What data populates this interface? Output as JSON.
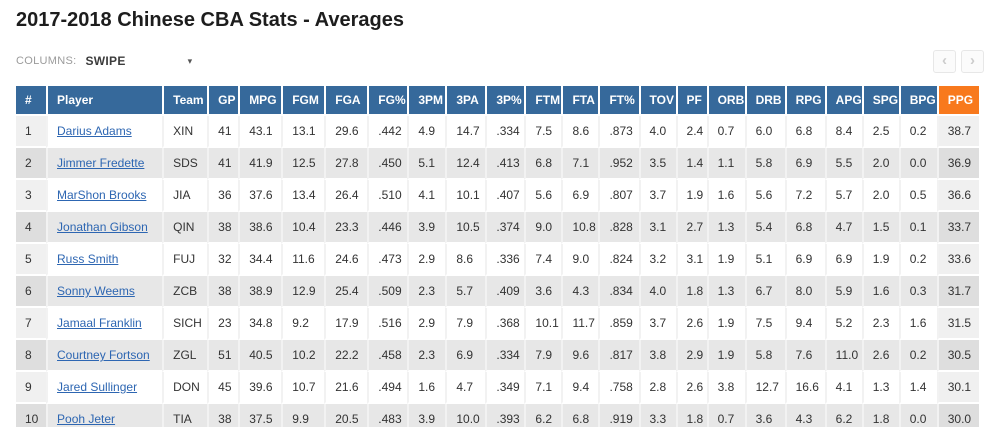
{
  "page": {
    "title": "2017-2018 Chinese CBA Stats - Averages"
  },
  "toolbar": {
    "columns_label": "COLUMNS:",
    "columns_value": "SWIPE",
    "icons": {
      "caret": "▾",
      "prev": "‹",
      "next": "›"
    }
  },
  "colors": {
    "header_bg": "#36699b",
    "sorted_header_bg": "#f8791d",
    "link_blue": "#2d66b2"
  },
  "table": {
    "sorted_column": "PPG",
    "columns": [
      "#",
      "Player",
      "Team",
      "GP",
      "MPG",
      "FGM",
      "FGA",
      "FG%",
      "3PM",
      "3PA",
      "3P%",
      "FTM",
      "FTA",
      "FT%",
      "TOV",
      "PF",
      "ORB",
      "DRB",
      "RPG",
      "APG",
      "SPG",
      "BPG",
      "PPG"
    ],
    "rows": [
      {
        "rank": "1",
        "player": "Darius Adams",
        "team": "XIN",
        "stats": [
          "41",
          "43.1",
          "13.1",
          "29.6",
          ".442",
          "4.9",
          "14.7",
          ".334",
          "7.5",
          "8.6",
          ".873",
          "4.0",
          "2.4",
          "0.7",
          "6.0",
          "6.8",
          "8.4",
          "2.5",
          "0.2",
          "38.7"
        ]
      },
      {
        "rank": "2",
        "player": "Jimmer Fredette",
        "team": "SDS",
        "stats": [
          "41",
          "41.9",
          "12.5",
          "27.8",
          ".450",
          "5.1",
          "12.4",
          ".413",
          "6.8",
          "7.1",
          ".952",
          "3.5",
          "1.4",
          "1.1",
          "5.8",
          "6.9",
          "5.5",
          "2.0",
          "0.0",
          "36.9"
        ]
      },
      {
        "rank": "3",
        "player": "MarShon Brooks",
        "team": "JIA",
        "stats": [
          "36",
          "37.6",
          "13.4",
          "26.4",
          ".510",
          "4.1",
          "10.1",
          ".407",
          "5.6",
          "6.9",
          ".807",
          "3.7",
          "1.9",
          "1.6",
          "5.6",
          "7.2",
          "5.7",
          "2.0",
          "0.5",
          "36.6"
        ]
      },
      {
        "rank": "4",
        "player": "Jonathan Gibson",
        "team": "QIN",
        "stats": [
          "38",
          "38.6",
          "10.4",
          "23.3",
          ".446",
          "3.9",
          "10.5",
          ".374",
          "9.0",
          "10.8",
          ".828",
          "3.1",
          "2.7",
          "1.3",
          "5.4",
          "6.8",
          "4.7",
          "1.5",
          "0.1",
          "33.7"
        ]
      },
      {
        "rank": "5",
        "player": "Russ Smith",
        "team": "FUJ",
        "stats": [
          "32",
          "34.4",
          "11.6",
          "24.6",
          ".473",
          "2.9",
          "8.6",
          ".336",
          "7.4",
          "9.0",
          ".824",
          "3.2",
          "3.1",
          "1.9",
          "5.1",
          "6.9",
          "6.9",
          "1.9",
          "0.2",
          "33.6"
        ]
      },
      {
        "rank": "6",
        "player": "Sonny Weems",
        "team": "ZCB",
        "stats": [
          "38",
          "38.9",
          "12.9",
          "25.4",
          ".509",
          "2.3",
          "5.7",
          ".409",
          "3.6",
          "4.3",
          ".834",
          "4.0",
          "1.8",
          "1.3",
          "6.7",
          "8.0",
          "5.9",
          "1.6",
          "0.3",
          "31.7"
        ]
      },
      {
        "rank": "7",
        "player": "Jamaal Franklin",
        "team": "SICH",
        "stats": [
          "23",
          "34.8",
          "9.2",
          "17.9",
          ".516",
          "2.9",
          "7.9",
          ".368",
          "10.1",
          "11.7",
          ".859",
          "3.7",
          "2.6",
          "1.9",
          "7.5",
          "9.4",
          "5.2",
          "2.3",
          "1.6",
          "31.5"
        ]
      },
      {
        "rank": "8",
        "player": "Courtney Fortson",
        "team": "ZGL",
        "stats": [
          "51",
          "40.5",
          "10.2",
          "22.2",
          ".458",
          "2.3",
          "6.9",
          ".334",
          "7.9",
          "9.6",
          ".817",
          "3.8",
          "2.9",
          "1.9",
          "5.8",
          "7.6",
          "11.0",
          "2.6",
          "0.2",
          "30.5"
        ]
      },
      {
        "rank": "9",
        "player": "Jared Sullinger",
        "team": "DON",
        "stats": [
          "45",
          "39.6",
          "10.7",
          "21.6",
          ".494",
          "1.6",
          "4.7",
          ".349",
          "7.1",
          "9.4",
          ".758",
          "2.8",
          "2.6",
          "3.8",
          "12.7",
          "16.6",
          "4.1",
          "1.3",
          "1.4",
          "30.1"
        ]
      },
      {
        "rank": "10",
        "player": "Pooh Jeter",
        "team": "TIA",
        "stats": [
          "38",
          "37.5",
          "9.9",
          "20.5",
          ".483",
          "3.9",
          "10.0",
          ".393",
          "6.2",
          "6.8",
          ".919",
          "3.3",
          "1.8",
          "0.7",
          "3.6",
          "4.3",
          "6.2",
          "1.8",
          "0.0",
          "30.0"
        ]
      }
    ]
  }
}
